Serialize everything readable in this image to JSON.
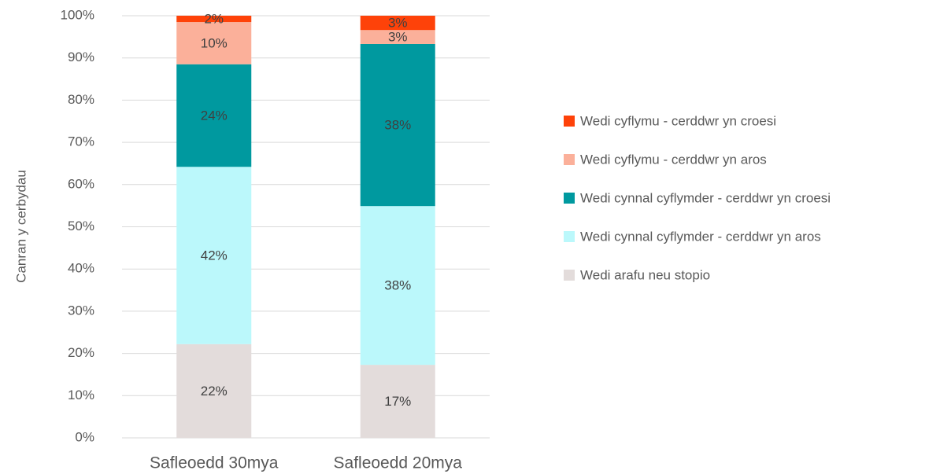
{
  "chart_data": {
    "type": "stacked_bar",
    "y_axis_label": "Canran y cerbydau",
    "categories": [
      "Safleoedd 30mya",
      "Safleoedd 20mya"
    ],
    "series": [
      {
        "name": "Wedi arafu neu stopio",
        "color": "#e3dcdb",
        "values": [
          22.2,
          17.3
        ],
        "value_labels": [
          "22%",
          "17%"
        ]
      },
      {
        "name": "Wedi cynnal cyflymder - cerddwr yn aros",
        "color": "#bbf8fb",
        "values": [
          42.0,
          37.6
        ],
        "value_labels": [
          "42%",
          "38%"
        ]
      },
      {
        "name": "Wedi cynnal cyflymder - cerddwr yn croesi",
        "color": "#00999f",
        "values": [
          24.3,
          38.4
        ],
        "value_labels": [
          "24%",
          "38%"
        ]
      },
      {
        "name": "Wedi cyflymu - cerddwr yn aros",
        "color": "#fbb09a",
        "values": [
          10.0,
          3.3
        ],
        "value_labels": [
          "10%",
          "3%"
        ]
      },
      {
        "name": "Wedi cyflymu - cerddwr yn croesi",
        "color": "#fe4209",
        "values": [
          1.5,
          3.4
        ],
        "value_labels": [
          "2%",
          "3%"
        ]
      }
    ],
    "ylim": [
      0,
      100
    ],
    "yticks": [
      {
        "value": 0,
        "label": "0%"
      },
      {
        "value": 10,
        "label": "10%"
      },
      {
        "value": 20,
        "label": "20%"
      },
      {
        "value": 30,
        "label": "30%"
      },
      {
        "value": 40,
        "label": "40%"
      },
      {
        "value": 50,
        "label": "50%"
      },
      {
        "value": 60,
        "label": "60%"
      },
      {
        "value": 70,
        "label": "70%"
      },
      {
        "value": 80,
        "label": "80%"
      },
      {
        "value": 90,
        "label": "90%"
      },
      {
        "value": 100,
        "label": "100%"
      }
    ],
    "grid": true,
    "legend": "right"
  }
}
